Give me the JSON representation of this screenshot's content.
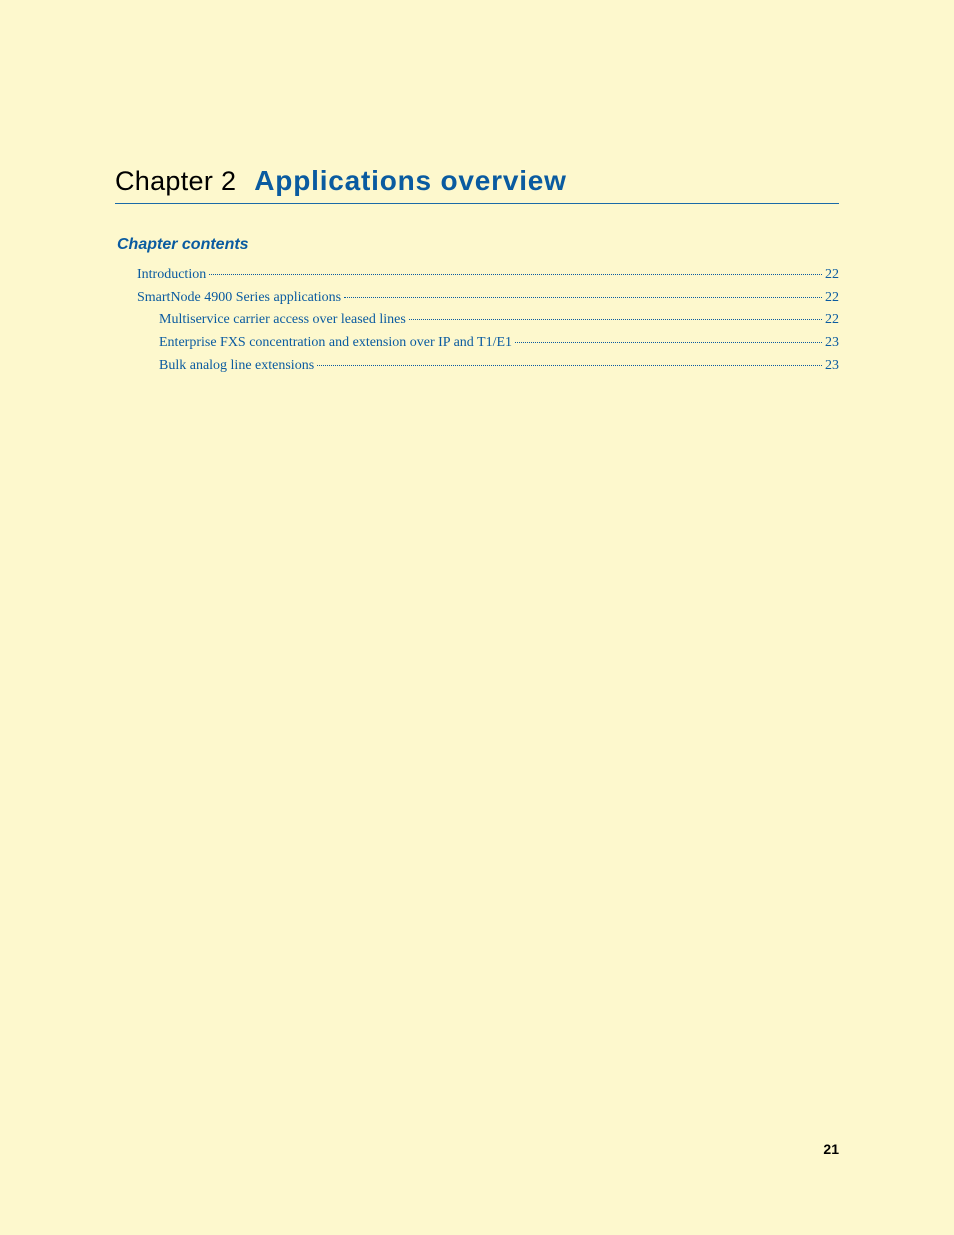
{
  "colors": {
    "background": "#fdf8cd",
    "heading_blue": "#0a5ba0",
    "text_black": "#000000",
    "rule_blue": "#1a6aa8"
  },
  "chapter": {
    "label": "Chapter 2",
    "title": "Applications overview"
  },
  "contents_heading": "Chapter contents",
  "toc": [
    {
      "label": "Introduction",
      "page": "22",
      "indent": 0
    },
    {
      "label": "SmartNode 4900 Series applications",
      "page": "22",
      "indent": 0
    },
    {
      "label": "Multiservice carrier access over leased lines ",
      "page": "22",
      "indent": 1
    },
    {
      "label": "Enterprise FXS concentration and extension over IP and T1/E1 ",
      "page": "23",
      "indent": 1
    },
    {
      "label": "Bulk analog line extensions ",
      "page": "23",
      "indent": 1
    }
  ],
  "page_number": "21"
}
